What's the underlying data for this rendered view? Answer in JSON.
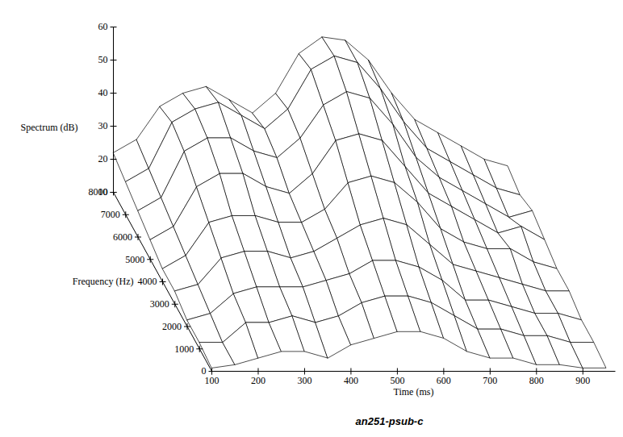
{
  "chart_data": {
    "type": "surface",
    "title": "an251-psub-c",
    "x_label": "Time (ms)",
    "y_label": "Frequency (Hz)",
    "z_label": "Spectrum (dB)",
    "x": [
      100,
      150,
      200,
      250,
      300,
      350,
      400,
      450,
      500,
      550,
      600,
      650,
      700,
      750,
      800,
      850,
      900,
      950
    ],
    "y": [
      0,
      1000,
      2000,
      3000,
      4000,
      5000,
      6000,
      7000,
      8000
    ],
    "z": [
      [
        11,
        12,
        14,
        16,
        16,
        14,
        18,
        20,
        22,
        22,
        20,
        16,
        14,
        14,
        12,
        12,
        11,
        11
      ],
      [
        12,
        12,
        18,
        18,
        20,
        18,
        20,
        24,
        26,
        26,
        24,
        20,
        16,
        16,
        14,
        14,
        12,
        12
      ],
      [
        12,
        14,
        20,
        22,
        22,
        22,
        24,
        26,
        30,
        30,
        28,
        24,
        18,
        18,
        16,
        14,
        14,
        12
      ],
      [
        14,
        16,
        24,
        26,
        26,
        24,
        26,
        30,
        34,
        36,
        34,
        28,
        22,
        20,
        18,
        16,
        14,
        14
      ],
      [
        14,
        18,
        28,
        30,
        30,
        28,
        28,
        32,
        40,
        42,
        40,
        34,
        26,
        22,
        20,
        20,
        16,
        14
      ],
      [
        16,
        20,
        32,
        36,
        36,
        32,
        30,
        36,
        46,
        48,
        46,
        38,
        30,
        26,
        22,
        18,
        20,
        16
      ],
      [
        18,
        22,
        36,
        40,
        40,
        36,
        34,
        40,
        50,
        54,
        52,
        44,
        34,
        28,
        24,
        20,
        16,
        18
      ],
      [
        20,
        24,
        38,
        42,
        44,
        40,
        36,
        42,
        54,
        58,
        56,
        48,
        38,
        30,
        26,
        22,
        18,
        16
      ],
      [
        22,
        26,
        36,
        40,
        42,
        38,
        34,
        40,
        52,
        57,
        56,
        50,
        40,
        32,
        28,
        24,
        20,
        18
      ]
    ],
    "xlim": [
      100,
      970
    ],
    "xticks": [
      100,
      200,
      300,
      400,
      500,
      600,
      700,
      800,
      900
    ],
    "ylim": [
      0,
      8000
    ],
    "yticks": [
      0,
      1000,
      2000,
      3000,
      4000,
      5000,
      6000,
      7000,
      8000
    ],
    "zlim": [
      10,
      60
    ],
    "zticks": [
      10,
      20,
      30,
      40,
      50,
      60
    ],
    "color": "#000000"
  }
}
